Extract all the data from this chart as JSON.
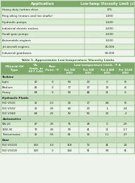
{
  "table1_title": "Application",
  "table1_title2": "Low-temp Viscosity Limit (cSt)",
  "table1_rows": [
    [
      "Heavy-duty turbine drive",
      "175"
    ],
    [
      "Ring oiling (motors and line shafts)",
      "1,000"
    ],
    [
      "Hydraulic pumps",
      "1,500"
    ],
    [
      "Industrial electric motors",
      "2,000"
    ],
    [
      "Small gear pumps",
      "2,000"
    ],
    [
      "Automobile engines",
      "3,000"
    ],
    [
      "Jet aircraft engines",
      "15,000"
    ],
    [
      "Industrial gearboxes",
      "50,000"
    ]
  ],
  "table1_caption": "Table 1. Approximate Low-temperature Viscosity Limits",
  "table2_sections": [
    {
      "section": "Turbine",
      "rows": [
        [
          "Light",
          "32",
          "0",
          "64",
          "23",
          "0",
          "B"
        ],
        [
          "Medium",
          "46",
          "0",
          "77",
          "37",
          "10",
          "B"
        ],
        [
          "Heavy",
          "68",
          "0",
          "90",
          "48",
          "21",
          "0"
        ]
      ]
    },
    {
      "section": "Hydraulic Fluids",
      "rows": [
        [
          "ISO VG15",
          "15",
          "-51",
          "25",
          "17",
          "-46",
          "B"
        ],
        [
          "ISO VG32",
          "32",
          "-35",
          "64",
          "23",
          "-1",
          "-24"
        ],
        [
          "ISO VG68",
          "68",
          "-25",
          "92",
          "50",
          "20",
          "-3"
        ]
      ]
    },
    {
      "section": "Automotive",
      "rows": [
        [
          "5W-20",
          "47",
          "-35",
          "75",
          "28",
          "0",
          "-25"
        ],
        [
          "10W-30",
          "70",
          "-35",
          "90",
          "41",
          "11",
          "-17"
        ],
        [
          "Transmission",
          "36",
          "-55",
          "61",
          "16",
          "-11",
          "-37"
        ]
      ]
    },
    {
      "section": "Gear",
      "rows": [
        [
          "ISO VG150",
          "150",
          "-10",
          "118",
          "72",
          "41",
          "14"
        ],
        [
          "ISO VG320",
          "320",
          "0",
          "144",
          "91",
          "59",
          "31"
        ]
      ]
    }
  ],
  "header_bg": "#7da86a",
  "row_bg_even": "#daebd3",
  "row_bg_odd": "#eef4eb",
  "section_bg": "#c5d9bc",
  "caption_color": "#3a6b28",
  "header_text": "#ffffff",
  "cell_text": "#1a1a1a",
  "border_color": "#90b880",
  "fig_bg": "#eef4eb"
}
